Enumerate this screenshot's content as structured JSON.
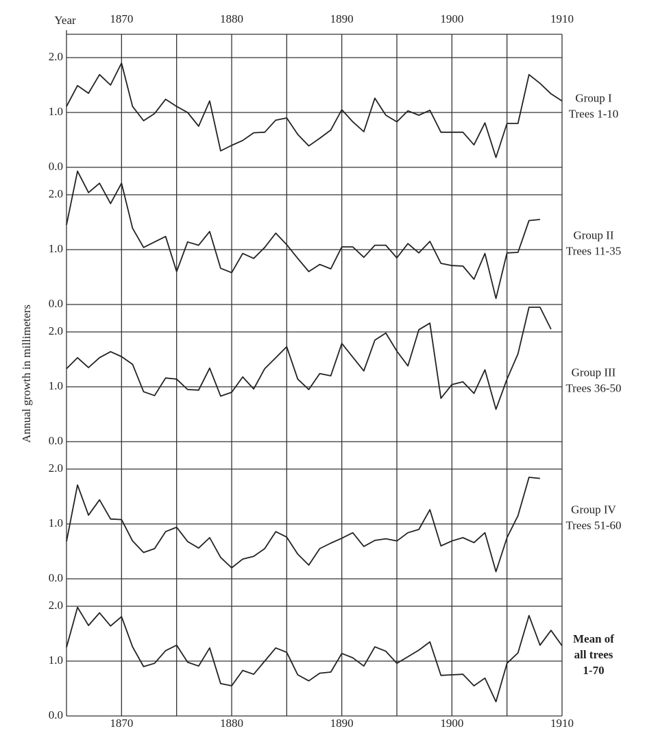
{
  "chart_data": [
    {
      "type": "line",
      "label": [
        "Group I",
        "Trees 1-10"
      ],
      "xlabel": "Year",
      "ylabel": "Annual growth in millimeters",
      "x": [
        1865,
        1866,
        1867,
        1868,
        1869,
        1870,
        1871,
        1872,
        1873,
        1874,
        1875,
        1876,
        1877,
        1878,
        1879,
        1880,
        1881,
        1882,
        1883,
        1884,
        1885,
        1886,
        1887,
        1888,
        1889,
        1890,
        1891,
        1892,
        1893,
        1894,
        1895,
        1896,
        1897,
        1898,
        1899,
        1900,
        1901,
        1902,
        1903,
        1904,
        1905,
        1906,
        1907,
        1908,
        1909,
        1910
      ],
      "values": [
        1.11,
        1.49,
        1.35,
        1.69,
        1.5,
        1.9,
        1.11,
        0.85,
        0.98,
        1.24,
        1.11,
        1.0,
        0.75,
        1.21,
        0.3,
        0.4,
        0.49,
        0.63,
        0.64,
        0.86,
        0.9,
        0.6,
        0.39,
        0.53,
        0.68,
        1.05,
        0.83,
        0.65,
        1.26,
        0.95,
        0.83,
        1.03,
        0.95,
        1.04,
        0.64,
        0.64,
        0.64,
        0.41,
        0.81,
        0.18,
        0.8,
        0.8,
        1.69,
        1.53,
        1.34,
        1.21
      ],
      "color": "#222222",
      "xlim": [
        1865,
        1910
      ],
      "ylim": [
        0,
        2.5
      ],
      "xticks": [
        1870,
        1880,
        1890,
        1900,
        1910
      ],
      "minor_xticks": [
        1875,
        1885,
        1895,
        1905
      ],
      "yticks": [
        {
          "value": 0,
          "label": "0.0"
        },
        {
          "value": 1,
          "label": "1.0"
        },
        {
          "value": 2,
          "label": "2.0"
        }
      ]
    },
    {
      "type": "line",
      "label": [
        "Group II",
        "Trees 11-35"
      ],
      "x": [
        1865,
        1866,
        1867,
        1868,
        1869,
        1870,
        1871,
        1872,
        1873,
        1874,
        1875,
        1876,
        1877,
        1878,
        1879,
        1880,
        1881,
        1882,
        1883,
        1884,
        1885,
        1886,
        1887,
        1888,
        1889,
        1890,
        1891,
        1892,
        1893,
        1894,
        1895,
        1896,
        1897,
        1898,
        1899,
        1900,
        1901,
        1902,
        1903,
        1904,
        1905,
        1906,
        1907,
        1908,
        1909,
        1910
      ],
      "values": [
        1.45,
        2.43,
        2.04,
        2.21,
        1.84,
        2.21,
        1.39,
        1.04,
        1.14,
        1.24,
        0.6,
        1.14,
        1.08,
        1.33,
        0.66,
        0.58,
        0.93,
        0.84,
        1.04,
        1.3,
        1.09,
        0.84,
        0.6,
        0.73,
        0.65,
        1.05,
        1.05,
        0.86,
        1.08,
        1.08,
        0.85,
        1.11,
        0.94,
        1.15,
        0.75,
        0.71,
        0.7,
        0.46,
        0.93,
        0.11,
        0.94,
        0.95,
        1.53,
        1.55,
        null,
        null
      ],
      "color": "#222222",
      "xlim": [
        1865,
        1910
      ],
      "ylim": [
        0,
        2.5
      ],
      "xticks": [
        1870,
        1880,
        1890,
        1900,
        1910
      ],
      "minor_xticks": [
        1875,
        1885,
        1895,
        1905
      ],
      "yticks": [
        {
          "value": 0,
          "label": "0.0"
        },
        {
          "value": 1,
          "label": "1.0"
        },
        {
          "value": 2,
          "label": "2.0"
        }
      ]
    },
    {
      "type": "line",
      "label": [
        "Group III",
        "Trees 36-50"
      ],
      "x": [
        1865,
        1866,
        1867,
        1868,
        1869,
        1870,
        1871,
        1872,
        1873,
        1874,
        1875,
        1876,
        1877,
        1878,
        1879,
        1880,
        1881,
        1882,
        1883,
        1884,
        1885,
        1886,
        1887,
        1888,
        1889,
        1890,
        1891,
        1892,
        1893,
        1894,
        1895,
        1896,
        1897,
        1898,
        1899,
        1900,
        1901,
        1902,
        1903,
        1904,
        1905,
        1906,
        1907,
        1908,
        1909,
        1910
      ],
      "values": [
        1.33,
        1.53,
        1.35,
        1.53,
        1.64,
        1.55,
        1.41,
        0.91,
        0.84,
        1.16,
        1.14,
        0.95,
        0.94,
        1.34,
        0.83,
        0.9,
        1.18,
        0.96,
        1.33,
        1.53,
        1.73,
        1.14,
        0.95,
        1.24,
        1.2,
        1.79,
        1.54,
        1.29,
        1.85,
        1.98,
        1.65,
        1.38,
        2.04,
        2.16,
        0.79,
        1.04,
        1.09,
        0.88,
        1.31,
        0.59,
        1.14,
        1.6,
        2.45,
        2.45,
        2.05,
        null
      ],
      "color": "#222222",
      "xlim": [
        1865,
        1910
      ],
      "ylim": [
        0,
        2.5
      ],
      "xticks": [
        1870,
        1880,
        1890,
        1900,
        1910
      ],
      "minor_xticks": [
        1875,
        1885,
        1895,
        1905
      ],
      "yticks": [
        {
          "value": 0,
          "label": "0.0"
        },
        {
          "value": 1,
          "label": "1.0"
        },
        {
          "value": 2,
          "label": "2.0"
        }
      ]
    },
    {
      "type": "line",
      "label": [
        "Group IV",
        "Trees 51-60"
      ],
      "x": [
        1865,
        1866,
        1867,
        1868,
        1869,
        1870,
        1871,
        1872,
        1873,
        1874,
        1875,
        1876,
        1877,
        1878,
        1879,
        1880,
        1881,
        1882,
        1883,
        1884,
        1885,
        1886,
        1887,
        1888,
        1889,
        1890,
        1891,
        1892,
        1893,
        1894,
        1895,
        1896,
        1897,
        1898,
        1899,
        1900,
        1901,
        1902,
        1903,
        1904,
        1905,
        1906,
        1907,
        1908,
        1909,
        1910
      ],
      "values": [
        0.68,
        1.71,
        1.16,
        1.44,
        1.09,
        1.08,
        0.69,
        0.48,
        0.55,
        0.86,
        0.94,
        0.68,
        0.56,
        0.75,
        0.39,
        0.2,
        0.36,
        0.41,
        0.55,
        0.86,
        0.76,
        0.45,
        0.25,
        0.55,
        0.65,
        0.74,
        0.84,
        0.59,
        0.7,
        0.73,
        0.69,
        0.84,
        0.9,
        1.26,
        0.6,
        0.69,
        0.75,
        0.66,
        0.84,
        0.13,
        0.75,
        1.15,
        1.85,
        1.83,
        null,
        null
      ],
      "color": "#222222",
      "xlim": [
        1865,
        1910
      ],
      "ylim": [
        0,
        2.5
      ],
      "xticks": [
        1870,
        1880,
        1890,
        1900,
        1910
      ],
      "minor_xticks": [
        1875,
        1885,
        1895,
        1905
      ],
      "yticks": [
        {
          "value": 0,
          "label": "0.0"
        },
        {
          "value": 1,
          "label": "1.0"
        },
        {
          "value": 2,
          "label": "2.0"
        }
      ]
    },
    {
      "type": "line",
      "label": [
        "Mean of",
        "all trees",
        "1-70"
      ],
      "x": [
        1865,
        1866,
        1867,
        1868,
        1869,
        1870,
        1871,
        1872,
        1873,
        1874,
        1875,
        1876,
        1877,
        1878,
        1879,
        1880,
        1881,
        1882,
        1883,
        1884,
        1885,
        1886,
        1887,
        1888,
        1889,
        1890,
        1891,
        1892,
        1893,
        1894,
        1895,
        1896,
        1897,
        1898,
        1899,
        1900,
        1901,
        1902,
        1903,
        1904,
        1905,
        1906,
        1907,
        1908,
        1909,
        1910
      ],
      "values": [
        1.25,
        1.98,
        1.65,
        1.88,
        1.64,
        1.81,
        1.26,
        0.9,
        0.96,
        1.19,
        1.29,
        0.98,
        0.91,
        1.24,
        0.59,
        0.55,
        0.83,
        0.76,
        1.0,
        1.24,
        1.16,
        0.75,
        0.64,
        0.78,
        0.8,
        1.14,
        1.06,
        0.91,
        1.26,
        1.18,
        0.96,
        1.08,
        1.2,
        1.35,
        0.74,
        0.75,
        0.76,
        0.55,
        0.69,
        0.26,
        0.96,
        1.15,
        1.83,
        1.29,
        1.56,
        1.28
      ],
      "color": "#222222",
      "xlim": [
        1865,
        1910
      ],
      "ylim": [
        0,
        2.5
      ],
      "xticks": [
        1870,
        1880,
        1890,
        1900,
        1910
      ],
      "minor_xticks": [
        1875,
        1885,
        1895,
        1905
      ],
      "yticks": [
        {
          "value": 0,
          "label": "0.0"
        },
        {
          "value": 1,
          "label": "1.0"
        },
        {
          "value": 2,
          "label": "2.0"
        }
      ]
    }
  ]
}
